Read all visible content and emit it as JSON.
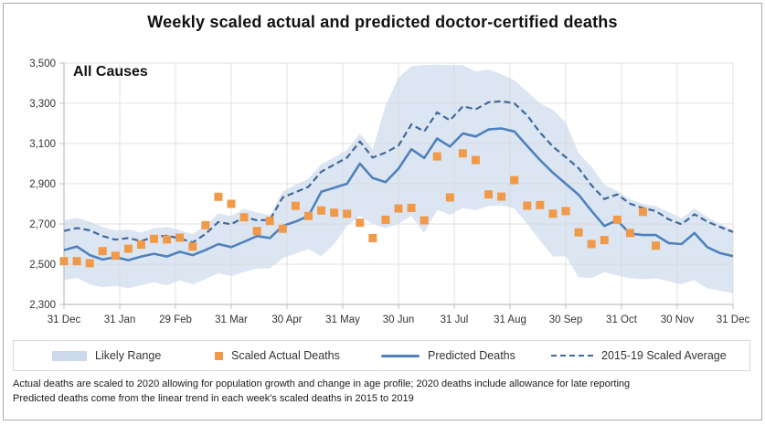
{
  "title": "Weekly scaled actual and predicted doctor-certified deaths",
  "plot_annotation": "All Causes",
  "legend": {
    "items": [
      {
        "label": "Likely Range",
        "swatch": "band-swatch"
      },
      {
        "label": "Scaled Actual Deaths",
        "swatch": "square-swatch"
      },
      {
        "label": "Predicted Deaths",
        "swatch": "solid-line-swatch"
      },
      {
        "label": "2015-19 Scaled Average",
        "swatch": "dashed-line-swatch"
      }
    ]
  },
  "footnotes": [
    "Actual deaths are scaled to 2020 allowing for population growth and change in age profile; 2020 deaths include allowance for late reporting",
    "Predicted deaths come from the linear trend in each week's scaled deaths in 2015 to 2019"
  ],
  "colors": {
    "predicted_line": "#4f81bd",
    "average_line": "#40699c",
    "band_fill": "#dce6f2",
    "actual_marker": "#f09a49",
    "gridline": "#d9d9d9",
    "axis": "#bfbfbf",
    "tick_text": "#333333",
    "title_text": "#111111"
  },
  "chart_data": {
    "type": "line",
    "title": "Weekly scaled actual and predicted doctor-certified deaths",
    "subtitle": "All Causes",
    "x_unit": "week",
    "n_weeks": 53,
    "x_tick_labels": [
      "31 Dec",
      "31 Jan",
      "29 Feb",
      "31 Mar",
      "30 Apr",
      "31 May",
      "30 Jun",
      "31 Jul",
      "31 Aug",
      "30 Sep",
      "31 Oct",
      "30 Nov",
      "31 Dec"
    ],
    "ylim": [
      2300,
      3500
    ],
    "y_ticks": [
      2300,
      2500,
      2700,
      2900,
      3100,
      3300,
      3500
    ],
    "y_tick_labels": [
      "2,300",
      "2,500",
      "2,700",
      "2,900",
      "3,100",
      "3,300",
      "3,500"
    ],
    "grid": true,
    "legend_position": "bottom",
    "series": [
      {
        "name": "Likely Range",
        "type": "band",
        "color": "#dce6f2",
        "low": [
          2420,
          2432,
          2400,
          2385,
          2392,
          2380,
          2395,
          2410,
          2395,
          2420,
          2400,
          2425,
          2455,
          2440,
          2462,
          2478,
          2480,
          2530,
          2552,
          2575,
          2540,
          2600,
          2690,
          2740,
          2700,
          2680,
          2700,
          2740,
          2655,
          2770,
          2745,
          2780,
          2768,
          2788,
          2792,
          2778,
          2700,
          2618,
          2538,
          2540,
          2435,
          2430,
          2460,
          2445,
          2430,
          2425,
          2430,
          2415,
          2400,
          2420,
          2380,
          2368,
          2355
        ],
        "high": [
          2720,
          2730,
          2712,
          2685,
          2668,
          2672,
          2658,
          2678,
          2685,
          2670,
          2650,
          2692,
          2752,
          2740,
          2775,
          2758,
          2742,
          2862,
          2895,
          2925,
          2998,
          3032,
          3068,
          3150,
          3072,
          3290,
          3428,
          3485,
          3490,
          3492,
          3490,
          3490,
          3458,
          3468,
          3445,
          3415,
          3358,
          3300,
          3268,
          3205,
          3052,
          2985,
          2895,
          2865,
          2822,
          2800,
          2788,
          2760,
          2727,
          2777,
          2735,
          2700,
          2673
        ]
      },
      {
        "name": "Scaled Actual Deaths",
        "type": "scatter",
        "marker": "square",
        "color": "#f09a49",
        "values": [
          2515,
          2515,
          2505,
          2565,
          2542,
          2577,
          2597,
          2626,
          2623,
          2632,
          2588,
          2694,
          2835,
          2800,
          2733,
          2665,
          2715,
          2676,
          2790,
          2740,
          2767,
          2756,
          2751,
          2706,
          2630,
          2721,
          2777,
          2780,
          2718,
          3036,
          2832,
          3051,
          3018,
          2847,
          2836,
          2918,
          2791,
          2794,
          2751,
          2764,
          2658,
          2600,
          2620,
          2721,
          2655,
          2760,
          2592
        ]
      },
      {
        "name": "Predicted Deaths",
        "type": "line",
        "style": "solid",
        "color": "#4f81bd",
        "values": [
          2570,
          2588,
          2545,
          2523,
          2535,
          2520,
          2538,
          2552,
          2538,
          2562,
          2545,
          2570,
          2600,
          2585,
          2612,
          2640,
          2630,
          2690,
          2712,
          2740,
          2860,
          2880,
          2900,
          3000,
          2928,
          2908,
          2975,
          3072,
          3028,
          3125,
          3085,
          3150,
          3135,
          3170,
          3175,
          3160,
          3088,
          3018,
          2955,
          2900,
          2845,
          2765,
          2690,
          2718,
          2652,
          2645,
          2645,
          2605,
          2600,
          2655,
          2585,
          2555,
          2540
        ]
      },
      {
        "name": "2015-19 Scaled Average",
        "type": "line",
        "style": "dashed",
        "color": "#40699c",
        "values": [
          2665,
          2680,
          2668,
          2640,
          2622,
          2630,
          2615,
          2636,
          2642,
          2628,
          2608,
          2650,
          2710,
          2698,
          2735,
          2718,
          2720,
          2832,
          2858,
          2885,
          2960,
          2995,
          3030,
          3110,
          3030,
          3055,
          3090,
          3195,
          3160,
          3255,
          3215,
          3285,
          3270,
          3305,
          3310,
          3300,
          3240,
          3155,
          3085,
          3032,
          2977,
          2892,
          2824,
          2847,
          2801,
          2779,
          2764,
          2723,
          2698,
          2748,
          2712,
          2685,
          2660
        ]
      }
    ]
  }
}
